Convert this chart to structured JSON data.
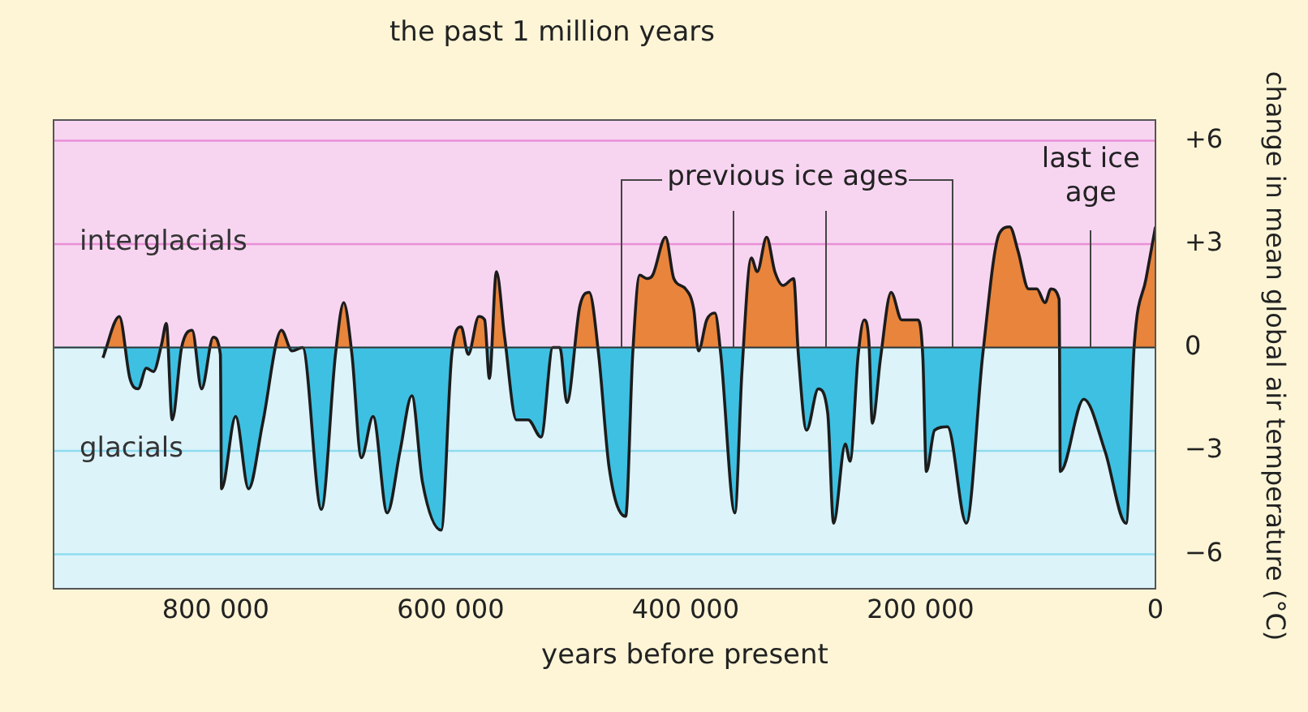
{
  "chart_data": {
    "type": "area",
    "title": "the past 1 million years",
    "xlabel": "years before present",
    "ylabel": "change in mean global air temperature (°C)",
    "x": [
      896000,
      882000,
      873000,
      866000,
      859000,
      853000,
      846000,
      842000,
      837000,
      829000,
      820000,
      812000,
      802000,
      796000,
      795000,
      783000,
      772000,
      760000,
      744000,
      735000,
      726000,
      710000,
      698000,
      691000,
      684000,
      676000,
      666000,
      654000,
      643000,
      633000,
      624000,
      608000,
      599000,
      591000,
      585000,
      576000,
      571000,
      567000,
      561000,
      554000,
      544000,
      534000,
      523000,
      513000,
      507000,
      501000,
      490000,
      482000,
      474000,
      465000,
      451000,
      445000,
      439000,
      433000,
      428000,
      417000,
      410000,
      400000,
      393000,
      389000,
      382000,
      375000,
      370000,
      358000,
      352000,
      344000,
      339000,
      331000,
      324000,
      317000,
      308000,
      304000,
      297000,
      287000,
      279000,
      274000,
      264000,
      260000,
      253000,
      248000,
      244000,
      241000,
      234000,
      225000,
      216000,
      202000,
      198000,
      195000,
      188000,
      177000,
      161000,
      147000,
      133000,
      124000,
      117000,
      108000,
      101000,
      94000,
      89000,
      82000,
      81000,
      61000,
      43000,
      25000,
      18000,
      8000,
      0
    ],
    "series": [
      {
        "color": "#e8843c",
        "values": [
          -0.3,
          0.9,
          -0.9,
          -1.2,
          -0.6,
          -0.7,
          0.1,
          0.7,
          -2.1,
          0,
          0.5,
          -1.2,
          0.3,
          -0.2,
          -4.1,
          -2,
          -4.1,
          -2.2,
          0.5,
          -0.1,
          0,
          -4.7,
          -0.2,
          1.3,
          -0.2,
          -3.2,
          -2,
          -4.8,
          -3,
          -1.4,
          -3.9,
          -5.3,
          -0.2,
          0.6,
          -0.2,
          0.9,
          0.8,
          -0.9,
          2.2,
          0.3,
          -2.1,
          -2.1,
          -2.6,
          0,
          0,
          -1.6,
          1.2,
          1.6,
          -0.2,
          -3.5,
          -4.9,
          -0.2,
          2.1,
          2,
          2.1,
          3.2,
          2,
          1.7,
          1.1,
          -0.1,
          0.8,
          1,
          -0.2,
          -4.8,
          -0.7,
          2.6,
          2.2,
          3.2,
          2.2,
          1.8,
          2,
          -0.2,
          -2.4,
          -1.2,
          -1.9,
          -5.1,
          -2.8,
          -3.3,
          -0.2,
          0.8,
          0.2,
          -2.2,
          -0.3,
          1.6,
          0.8,
          0.8,
          -0.3,
          -3.6,
          -2.4,
          -2.3,
          -5.1,
          -0.2,
          3.3,
          3.5,
          2.8,
          1.7,
          1.7,
          1.3,
          1.7,
          1.4,
          -3.6,
          -1.5,
          -3,
          -5.1,
          0.1,
          2,
          3.5
        ]
      }
    ],
    "xlim": [
      938000,
      0
    ],
    "ylim": [
      -7,
      6.6
    ],
    "xticks": [
      {
        "value": 800000,
        "label": "800 000"
      },
      {
        "value": 600000,
        "label": "600 000"
      },
      {
        "value": 400000,
        "label": "400 000"
      },
      {
        "value": 200000,
        "label": "200 000"
      },
      0
    ],
    "yticks": [
      {
        "value": 6,
        "label": "+6"
      },
      {
        "value": 3,
        "label": "+3"
      },
      0,
      {
        "value": -3,
        "label": "−3"
      },
      {
        "value": -6,
        "label": "−6"
      }
    ],
    "bands": [
      {
        "axis": "y",
        "from": 0,
        "to": 6.6,
        "label": "interglacials",
        "color": "#f7d5f1"
      },
      {
        "axis": "y",
        "from": -7,
        "to": 0,
        "label": "glacials",
        "color": "#dcf3fa"
      }
    ],
    "grid": "y",
    "marker": "none",
    "line_style": "solid",
    "annotations": [
      {
        "text": "previous ice ages",
        "x": 454000,
        "y": 0
      },
      {
        "text": "last ice age",
        "x": 55000,
        "y": 0
      }
    ]
  }
}
